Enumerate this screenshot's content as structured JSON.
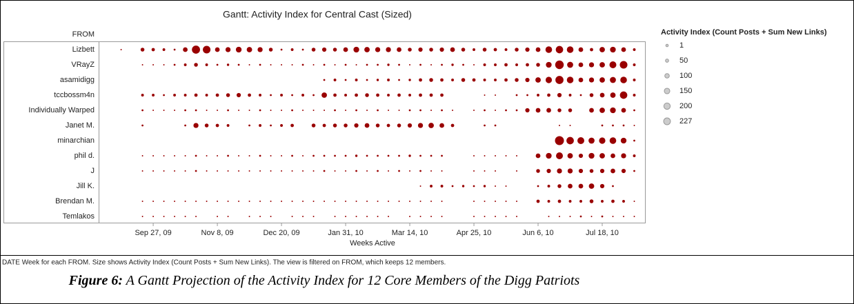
{
  "chart_data": {
    "type": "gantt_bubble",
    "title": "Gantt: Activity Index for Central Cast (Sized)",
    "row_header": "FROM",
    "xlabel": "Weeks Active",
    "color": "#990000",
    "xlim": [
      "2009-08-23",
      "2010-08-15"
    ],
    "xticks": [
      {
        "value": "2009-09-27",
        "label": "Sep 27, 09"
      },
      {
        "value": "2009-11-08",
        "label": "Nov 8, 09"
      },
      {
        "value": "2009-12-20",
        "label": "Dec 20, 09"
      },
      {
        "value": "2010-01-31",
        "label": "Jan 31, 10"
      },
      {
        "value": "2010-03-14",
        "label": "Mar 14, 10"
      },
      {
        "value": "2010-04-25",
        "label": "Apr 25, 10"
      },
      {
        "value": "2010-06-06",
        "label": "Jun 6, 10"
      },
      {
        "value": "2010-07-18",
        "label": "Jul 18, 10"
      }
    ],
    "x": [
      "2009-09-06",
      "2009-09-13",
      "2009-09-20",
      "2009-09-27",
      "2009-10-04",
      "2009-10-11",
      "2009-10-18",
      "2009-10-25",
      "2009-11-01",
      "2009-11-08",
      "2009-11-15",
      "2009-11-22",
      "2009-11-29",
      "2009-12-06",
      "2009-12-13",
      "2009-12-20",
      "2009-12-27",
      "2010-01-03",
      "2010-01-10",
      "2010-01-17",
      "2010-01-24",
      "2010-01-31",
      "2010-02-07",
      "2010-02-14",
      "2010-02-21",
      "2010-02-28",
      "2010-03-07",
      "2010-03-14",
      "2010-03-21",
      "2010-03-28",
      "2010-04-04",
      "2010-04-11",
      "2010-04-18",
      "2010-04-25",
      "2010-05-02",
      "2010-05-09",
      "2010-05-16",
      "2010-05-23",
      "2010-05-30",
      "2010-06-06",
      "2010-06-13",
      "2010-06-20",
      "2010-06-27",
      "2010-07-04",
      "2010-07-11",
      "2010-07-18",
      "2010-07-25",
      "2010-08-01",
      "2010-08-08"
    ],
    "series": [
      {
        "name": "Lizbett",
        "values": [
          5,
          null,
          40,
          30,
          20,
          10,
          60,
          180,
          160,
          60,
          70,
          90,
          80,
          70,
          40,
          10,
          20,
          10,
          40,
          50,
          40,
          60,
          90,
          80,
          70,
          70,
          60,
          40,
          50,
          40,
          50,
          60,
          40,
          20,
          40,
          30,
          20,
          40,
          50,
          60,
          120,
          150,
          120,
          60,
          30,
          80,
          90,
          60,
          20
        ]
      },
      {
        "name": "VRayZ",
        "values": [
          null,
          null,
          5,
          5,
          5,
          10,
          20,
          40,
          20,
          10,
          15,
          10,
          5,
          10,
          5,
          5,
          5,
          10,
          5,
          10,
          5,
          10,
          5,
          10,
          10,
          15,
          10,
          5,
          10,
          5,
          10,
          15,
          10,
          5,
          20,
          20,
          30,
          20,
          30,
          40,
          90,
          200,
          100,
          60,
          70,
          80,
          130,
          160,
          20
        ]
      },
      {
        "name": "asamidigg",
        "values": [
          null,
          null,
          null,
          null,
          null,
          null,
          null,
          null,
          null,
          null,
          null,
          null,
          null,
          null,
          null,
          null,
          null,
          null,
          null,
          10,
          20,
          10,
          20,
          10,
          15,
          20,
          10,
          15,
          30,
          40,
          30,
          20,
          40,
          30,
          20,
          20,
          30,
          40,
          50,
          80,
          110,
          180,
          120,
          60,
          70,
          80,
          100,
          120,
          20
        ]
      },
      {
        "name": "tccbossm4n",
        "values": [
          null,
          null,
          20,
          20,
          10,
          20,
          20,
          30,
          20,
          30,
          40,
          50,
          30,
          20,
          10,
          20,
          10,
          20,
          10,
          80,
          30,
          20,
          30,
          40,
          30,
          20,
          30,
          20,
          30,
          30,
          30,
          null,
          null,
          null,
          5,
          5,
          null,
          10,
          10,
          20,
          30,
          50,
          20,
          10,
          40,
          60,
          80,
          150,
          20
        ]
      },
      {
        "name": "Individually Warped",
        "values": [
          null,
          null,
          10,
          5,
          5,
          5,
          10,
          10,
          5,
          5,
          10,
          5,
          5,
          10,
          5,
          5,
          10,
          5,
          5,
          5,
          10,
          5,
          10,
          5,
          10,
          5,
          5,
          10,
          10,
          5,
          10,
          5,
          null,
          5,
          10,
          5,
          10,
          10,
          50,
          60,
          60,
          40,
          40,
          null,
          60,
          80,
          90,
          60,
          10
        ]
      },
      {
        "name": "Janet M.",
        "values": [
          null,
          null,
          10,
          null,
          null,
          null,
          10,
          70,
          40,
          30,
          20,
          null,
          10,
          20,
          10,
          20,
          30,
          null,
          40,
          30,
          40,
          40,
          50,
          60,
          40,
          30,
          40,
          50,
          70,
          80,
          60,
          30,
          null,
          null,
          10,
          10,
          null,
          null,
          null,
          null,
          null,
          5,
          5,
          null,
          null,
          10,
          10,
          10,
          5
        ]
      },
      {
        "name": "minarchian",
        "values": [
          null,
          null,
          null,
          null,
          null,
          null,
          null,
          null,
          null,
          null,
          null,
          null,
          null,
          null,
          null,
          null,
          null,
          null,
          null,
          null,
          null,
          null,
          null,
          null,
          null,
          null,
          null,
          null,
          null,
          null,
          null,
          null,
          null,
          null,
          null,
          null,
          null,
          null,
          null,
          null,
          null,
          220,
          150,
          130,
          100,
          110,
          120,
          90,
          10
        ]
      },
      {
        "name": "phil d.",
        "values": [
          null,
          null,
          5,
          5,
          5,
          5,
          5,
          10,
          5,
          5,
          10,
          5,
          5,
          10,
          5,
          5,
          10,
          5,
          10,
          10,
          10,
          10,
          15,
          10,
          10,
          10,
          10,
          15,
          10,
          10,
          10,
          null,
          null,
          5,
          5,
          5,
          5,
          5,
          null,
          60,
          90,
          130,
          80,
          50,
          90,
          80,
          60,
          70,
          20
        ]
      },
      {
        "name": "J",
        "values": [
          null,
          null,
          5,
          5,
          5,
          5,
          5,
          10,
          5,
          5,
          5,
          5,
          5,
          5,
          5,
          5,
          5,
          5,
          5,
          10,
          5,
          5,
          10,
          5,
          10,
          5,
          10,
          5,
          10,
          5,
          5,
          null,
          null,
          5,
          5,
          5,
          null,
          5,
          null,
          40,
          50,
          70,
          70,
          50,
          40,
          50,
          60,
          50,
          10
        ]
      },
      {
        "name": "Jill K.",
        "values": [
          null,
          null,
          null,
          null,
          null,
          null,
          null,
          null,
          null,
          null,
          null,
          null,
          null,
          null,
          null,
          null,
          null,
          null,
          null,
          null,
          null,
          null,
          null,
          null,
          null,
          null,
          null,
          null,
          5,
          20,
          20,
          10,
          15,
          10,
          15,
          5,
          5,
          null,
          null,
          10,
          20,
          40,
          60,
          60,
          80,
          50,
          10,
          null,
          null
        ]
      },
      {
        "name": "Brendan M.",
        "values": [
          null,
          null,
          5,
          5,
          5,
          5,
          5,
          5,
          5,
          5,
          5,
          5,
          5,
          5,
          5,
          5,
          5,
          5,
          5,
          5,
          5,
          5,
          5,
          5,
          5,
          5,
          5,
          5,
          5,
          5,
          5,
          null,
          null,
          5,
          5,
          5,
          5,
          5,
          null,
          30,
          20,
          30,
          20,
          20,
          40,
          20,
          30,
          20,
          5
        ]
      },
      {
        "name": "Temlakos",
        "values": [
          null,
          null,
          5,
          5,
          5,
          5,
          5,
          5,
          null,
          5,
          5,
          null,
          5,
          5,
          5,
          null,
          5,
          5,
          5,
          null,
          5,
          5,
          5,
          5,
          5,
          5,
          null,
          5,
          5,
          5,
          5,
          null,
          null,
          5,
          5,
          5,
          5,
          5,
          null,
          null,
          5,
          5,
          5,
          10,
          5,
          10,
          5,
          5,
          5
        ]
      }
    ],
    "size_legend": {
      "title": "Activity Index (Count Posts + Sum New Links)",
      "values": [
        1,
        50,
        100,
        150,
        200,
        227
      ]
    },
    "footnote": "DATE Week for each FROM.  Size shows Activity Index (Count Posts + Sum New Links). The view is filtered on FROM, which keeps 12 members.",
    "figure_label": "Figure 6:",
    "caption": "A Gantt Projection of the Activity Index for 12 Core Members of the Digg Patriots"
  }
}
